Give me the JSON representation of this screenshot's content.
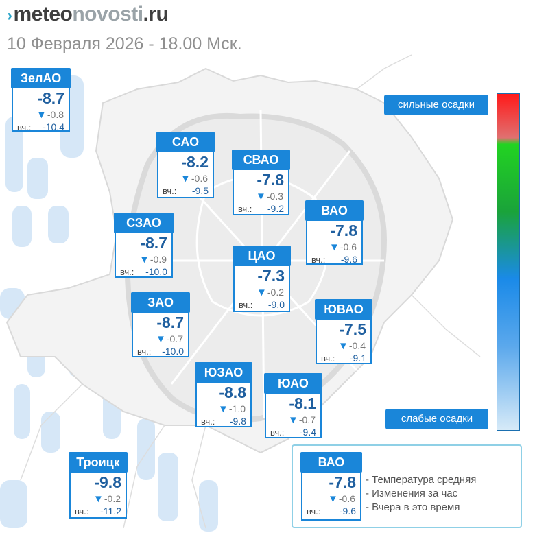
{
  "site": {
    "brand_part1": "meteo",
    "brand_part2": "novosti",
    "brand_part3": ".ru",
    "logo_icon": "meteonovosti-logo-mark"
  },
  "date_line": "10 Февраля 2026 - 18.00 Мск.",
  "legend": {
    "top_label": "сильные осадки",
    "bottom_label": "слабые осадки",
    "colors": [
      "#ff1a1a",
      "#22d322",
      "#1a8ae8",
      "#d6eaf8"
    ]
  },
  "change_icon": "down-triangle-icon",
  "accent_color": "#1a86d9",
  "districts": [
    {
      "name": "ЗелАО",
      "temp": "-8.7",
      "change": "-0.8",
      "yesterday_label": "вч.:",
      "yesterday": "-10.4"
    },
    {
      "name": "САО",
      "temp": "-8.2",
      "change": "-0.6",
      "yesterday_label": "вч.:",
      "yesterday": "-9.5"
    },
    {
      "name": "СВАО",
      "temp": "-7.8",
      "change": "-0.3",
      "yesterday_label": "вч.:",
      "yesterday": "-9.2"
    },
    {
      "name": "ВАО",
      "temp": "-7.8",
      "change": "-0.6",
      "yesterday_label": "вч.:",
      "yesterday": "-9.6"
    },
    {
      "name": "СЗАО",
      "temp": "-8.7",
      "change": "-0.9",
      "yesterday_label": "вч.:",
      "yesterday": "-10.0"
    },
    {
      "name": "ЦАО",
      "temp": "-7.3",
      "change": "-0.2",
      "yesterday_label": "вч.:",
      "yesterday": "-9.0"
    },
    {
      "name": "ЗАО",
      "temp": "-8.7",
      "change": "-0.7",
      "yesterday_label": "вч.:",
      "yesterday": "-10.0"
    },
    {
      "name": "ЮВАО",
      "temp": "-7.5",
      "change": "-0.4",
      "yesterday_label": "вч.:",
      "yesterday": "-9.1"
    },
    {
      "name": "ЮЗАО",
      "temp": "-8.8",
      "change": "-1.0",
      "yesterday_label": "вч.:",
      "yesterday": "-9.8"
    },
    {
      "name": "ЮАО",
      "temp": "-8.1",
      "change": "-0.7",
      "yesterday_label": "вч.:",
      "yesterday": "-9.4"
    },
    {
      "name": "Троицк",
      "temp": "-9.8",
      "change": "-0.2",
      "yesterday_label": "вч.:",
      "yesterday": "-11.2"
    }
  ],
  "key": {
    "example": {
      "name": "ВАО",
      "temp": "-7.8",
      "change": "-0.6",
      "yesterday_label": "вч.:",
      "yesterday": "-9.6"
    },
    "lines": [
      "- Температура средняя",
      "- Изменения за час",
      "- Вчера в это время"
    ]
  },
  "chart_data": {
    "type": "table",
    "title": "10 Февраля 2026 - 18.00 Мск.",
    "columns": [
      "district",
      "temperature",
      "change_per_hour",
      "yesterday_same_time"
    ],
    "rows": [
      [
        "ЗелАО",
        -8.7,
        -0.8,
        -10.4
      ],
      [
        "САО",
        -8.2,
        -0.6,
        -9.5
      ],
      [
        "СВАО",
        -7.8,
        -0.3,
        -9.2
      ],
      [
        "ВАО",
        -7.8,
        -0.6,
        -9.6
      ],
      [
        "СЗАО",
        -8.7,
        -0.9,
        -10.0
      ],
      [
        "ЦАО",
        -7.3,
        -0.2,
        -9.0
      ],
      [
        "ЗАО",
        -8.7,
        -0.7,
        -10.0
      ],
      [
        "ЮВАО",
        -7.5,
        -0.4,
        -9.1
      ],
      [
        "ЮЗАО",
        -8.8,
        -1.0,
        -9.8
      ],
      [
        "ЮАО",
        -8.1,
        -0.7,
        -9.4
      ],
      [
        "Троицк",
        -9.8,
        -0.2,
        -11.2
      ]
    ]
  }
}
